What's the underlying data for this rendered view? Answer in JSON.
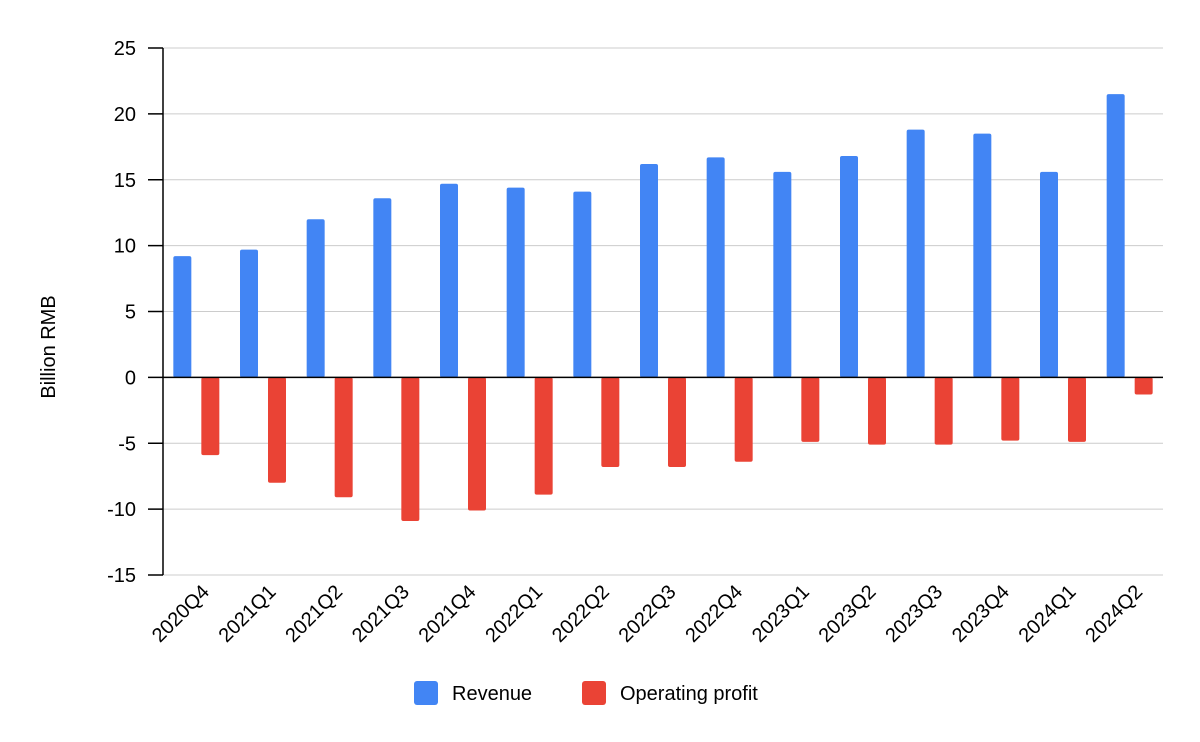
{
  "chart_data": {
    "type": "bar",
    "title": "",
    "xlabel": "",
    "ylabel": "Billion RMB",
    "ylim": [
      -15,
      25
    ],
    "yticks": [
      25,
      20,
      15,
      10,
      5,
      0,
      -5,
      -10,
      -15
    ],
    "grid": true,
    "legend_position": "bottom-center",
    "categories": [
      "2020Q4",
      "2021Q1",
      "2021Q2",
      "2021Q3",
      "2021Q4",
      "2022Q1",
      "2022Q2",
      "2022Q3",
      "2022Q4",
      "2023Q1",
      "2023Q2",
      "2023Q3",
      "2023Q4",
      "2024Q1",
      "2024Q2"
    ],
    "series": [
      {
        "name": "Revenue",
        "color": "#4285f4",
        "values": [
          9.2,
          9.7,
          12.0,
          13.6,
          14.7,
          14.4,
          14.1,
          16.2,
          16.7,
          15.6,
          16.8,
          18.8,
          18.5,
          15.6,
          21.5
        ]
      },
      {
        "name": "Operating profit",
        "color": "#ea4335",
        "values": [
          -5.9,
          -8.0,
          -9.1,
          -10.9,
          -10.1,
          -8.9,
          -6.8,
          -6.8,
          -6.4,
          -4.9,
          -5.1,
          -5.1,
          -4.8,
          -4.9,
          -1.3
        ]
      }
    ]
  }
}
